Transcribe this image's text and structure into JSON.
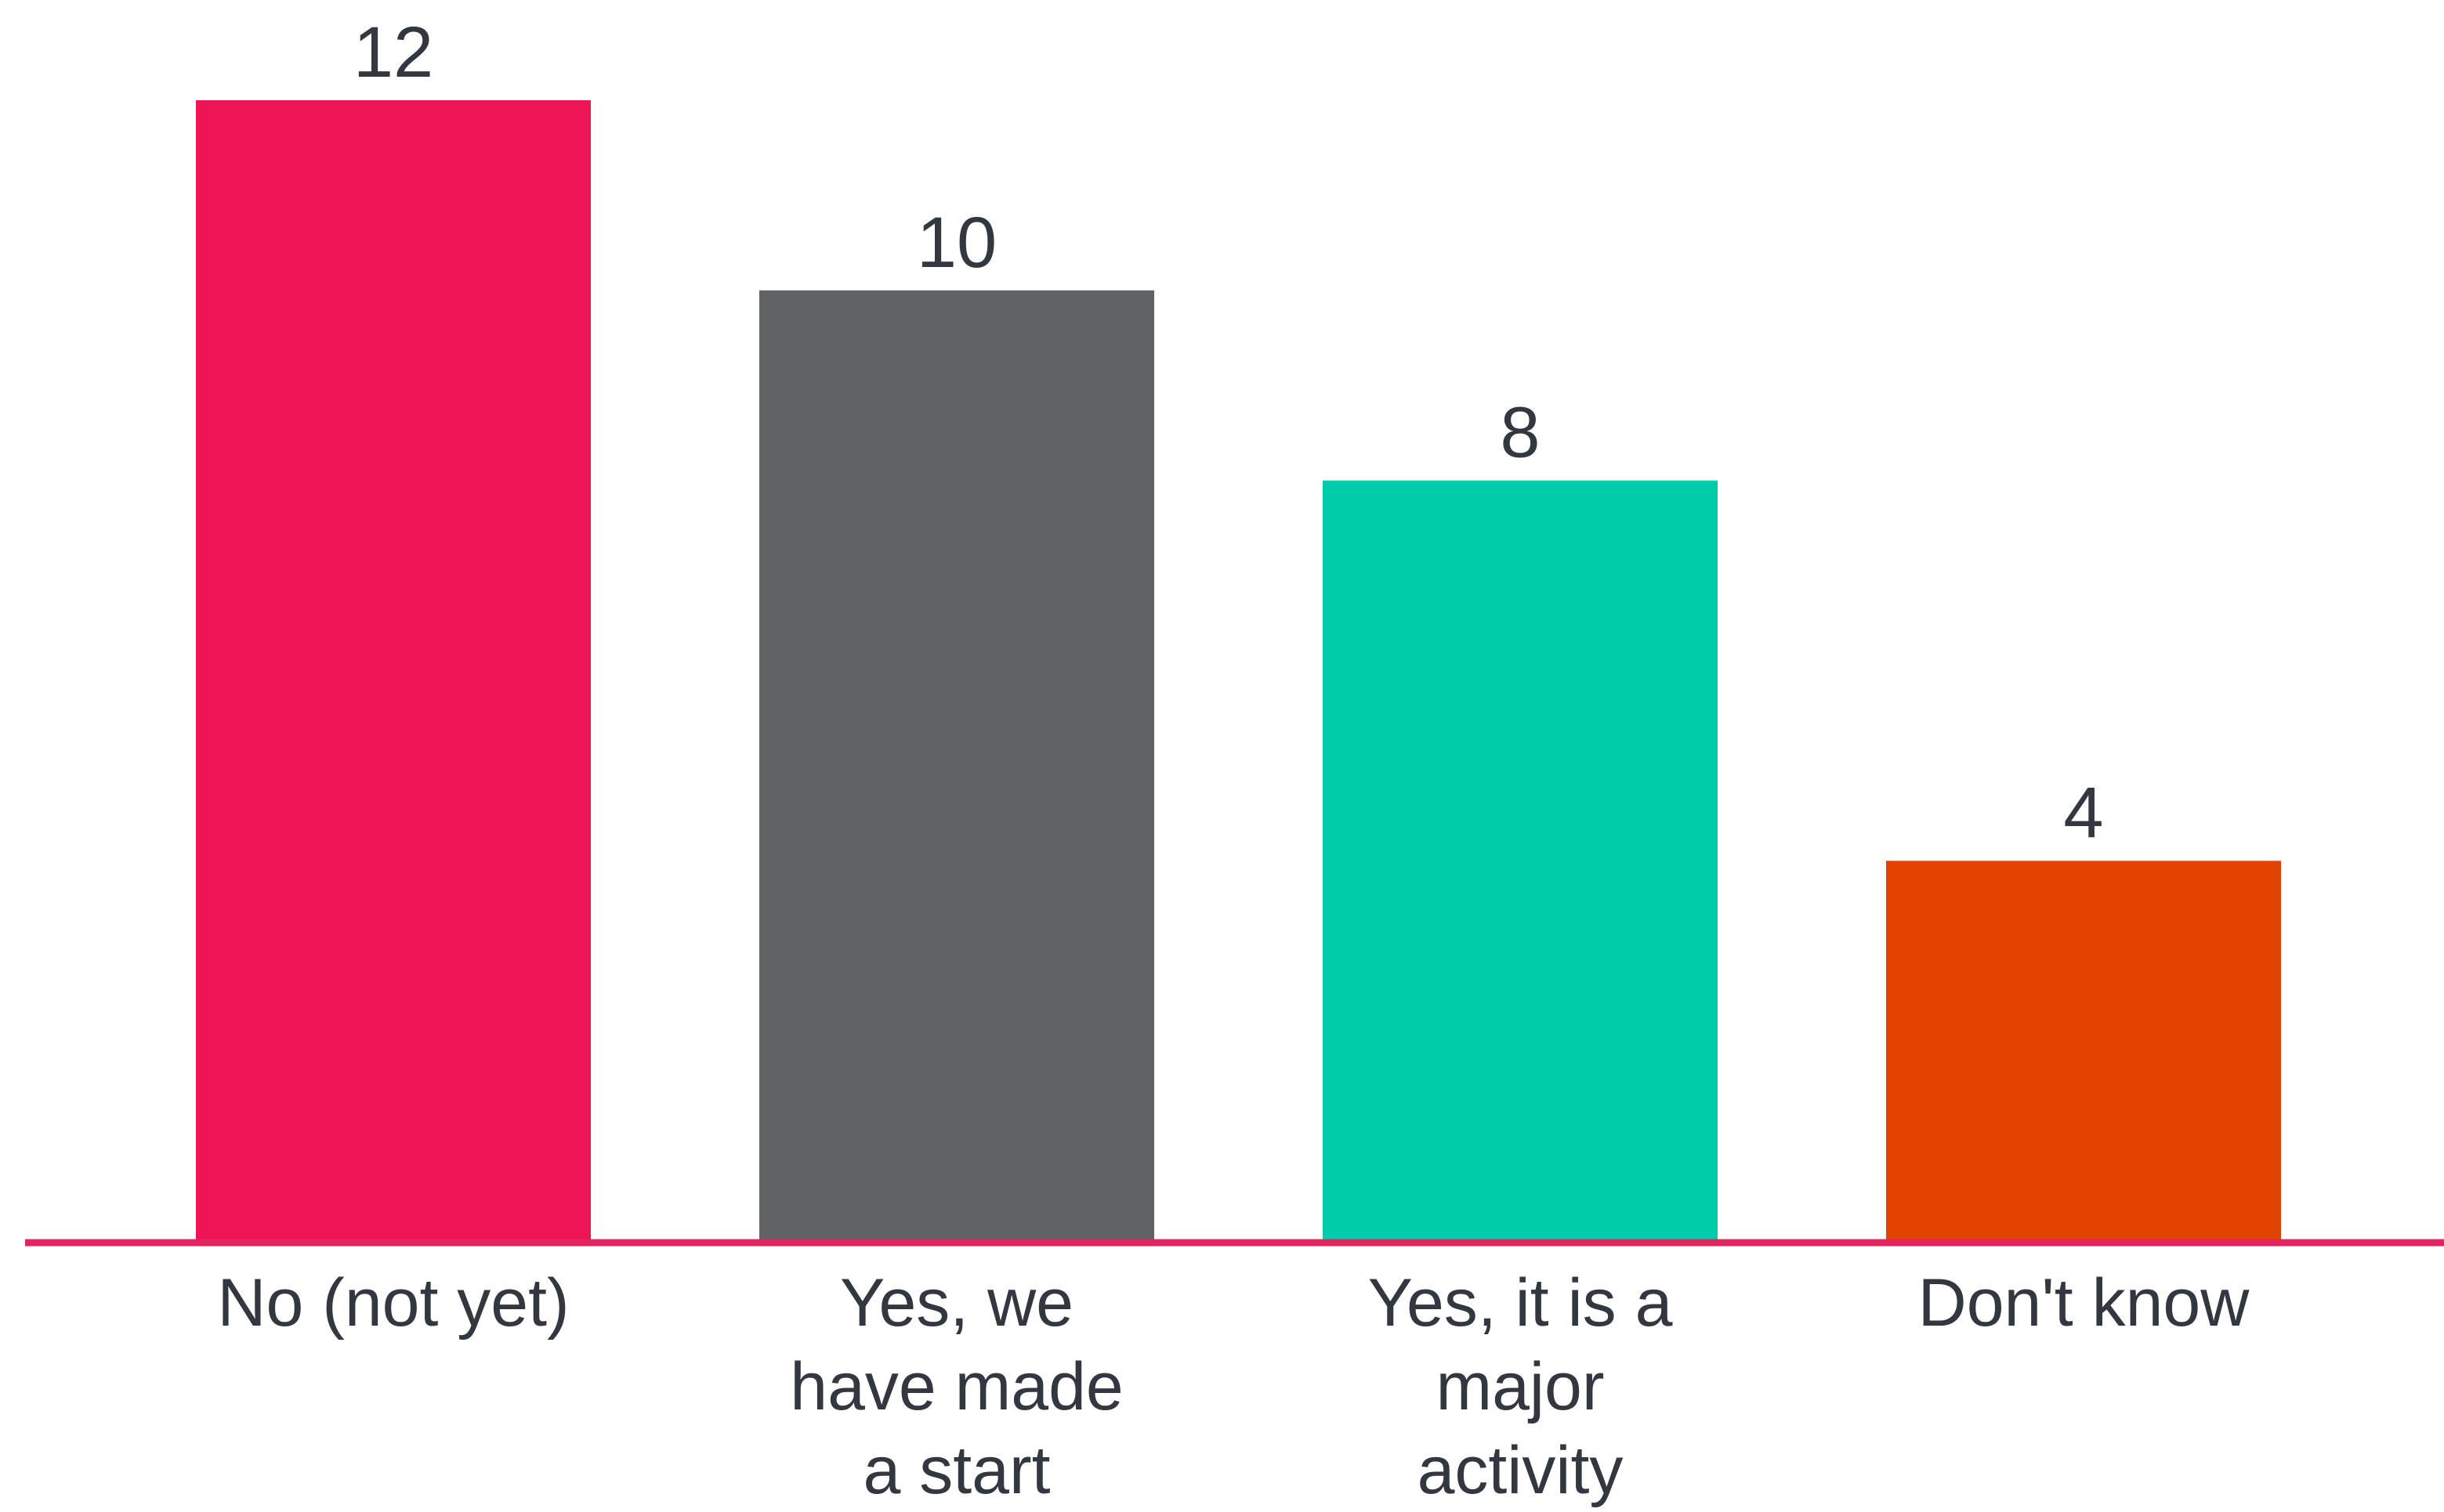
{
  "chart_data": {
    "type": "bar",
    "title": "",
    "xlabel": "",
    "ylabel": "",
    "ylim": [
      0,
      12
    ],
    "grid": false,
    "legend": "none",
    "categories": [
      [
        "No (not yet)"
      ],
      [
        "Yes, we",
        "have made",
        "a start"
      ],
      [
        "Yes, it is a",
        "major",
        "activity"
      ],
      [
        "Don't know"
      ]
    ],
    "values": [
      12,
      10,
      8,
      4
    ],
    "value_labels": [
      "12",
      "10",
      "8",
      "4"
    ],
    "colors": [
      "#ED1556",
      "#606266",
      "#00CCAA",
      "#E24400"
    ],
    "axis_color": "#E0245E",
    "text_color": "#333740"
  }
}
